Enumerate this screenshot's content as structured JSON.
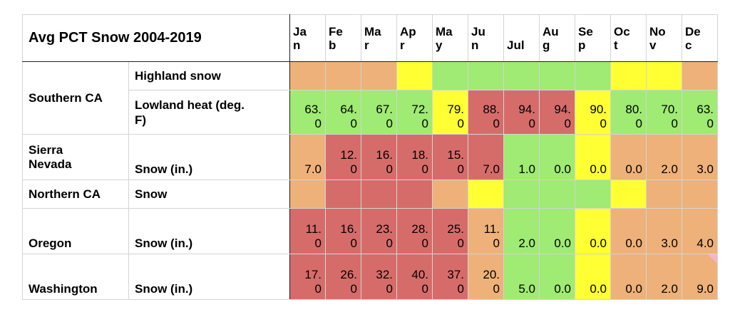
{
  "table": {
    "title": "Avg PCT Snow 2004-2019",
    "months": [
      {
        "line1": "Ja",
        "line2": "n"
      },
      {
        "line1": "Fe",
        "line2": "b"
      },
      {
        "line1": "Ma",
        "line2": "r"
      },
      {
        "line1": "Ap",
        "line2": "r"
      },
      {
        "line1": "Ma",
        "line2": "y"
      },
      {
        "line1": "Ju",
        "line2": "n"
      },
      {
        "line1": "Jul",
        "line2": ""
      },
      {
        "line1": "Au",
        "line2": "g"
      },
      {
        "line1": "Se",
        "line2": "p"
      },
      {
        "line1": "Oc",
        "line2": "t"
      },
      {
        "line1": "No",
        "line2": "v"
      },
      {
        "line1": "De",
        "line2": "c"
      }
    ],
    "regions": [
      {
        "name": "Southern CA"
      },
      {
        "name": "Sierra Nevada",
        "name_line1": "Sierra",
        "name_line2": "Nevada"
      },
      {
        "name": "Northern CA"
      },
      {
        "name": "Oregon"
      },
      {
        "name": "Washington"
      }
    ],
    "rows": [
      {
        "region": "Southern CA",
        "metric": "Highland snow",
        "cells": [
          {
            "v1": "",
            "v2": "",
            "color": "#eeb179"
          },
          {
            "v1": "",
            "v2": "",
            "color": "#eeb179"
          },
          {
            "v1": "",
            "v2": "",
            "color": "#eeb179"
          },
          {
            "v1": "",
            "v2": "",
            "color": "#ffff33"
          },
          {
            "v1": "",
            "v2": "",
            "color": "#9feb73"
          },
          {
            "v1": "",
            "v2": "",
            "color": "#9feb73"
          },
          {
            "v1": "",
            "v2": "",
            "color": "#9feb73"
          },
          {
            "v1": "",
            "v2": "",
            "color": "#9feb73"
          },
          {
            "v1": "",
            "v2": "",
            "color": "#9feb73"
          },
          {
            "v1": "",
            "v2": "",
            "color": "#ffff33"
          },
          {
            "v1": "",
            "v2": "",
            "color": "#ffff33"
          },
          {
            "v1": "",
            "v2": "",
            "color": "#eeb179"
          }
        ]
      },
      {
        "region": "Southern CA",
        "metric": "Lowland heat (deg. F)",
        "metric_line1": "Lowland heat (deg.",
        "metric_line2": "F)",
        "cells": [
          {
            "v1": "63.",
            "v2": "0",
            "color": "#9feb73"
          },
          {
            "v1": "64.",
            "v2": "0",
            "color": "#9feb73"
          },
          {
            "v1": "67.",
            "v2": "0",
            "color": "#9feb73"
          },
          {
            "v1": "72.",
            "v2": "0",
            "color": "#9feb73"
          },
          {
            "v1": "79.",
            "v2": "0",
            "color": "#ffff33"
          },
          {
            "v1": "88.",
            "v2": "0",
            "color": "#d66c6a"
          },
          {
            "v1": "94.",
            "v2": "0",
            "color": "#d66c6a"
          },
          {
            "v1": "94.",
            "v2": "0",
            "color": "#d66c6a"
          },
          {
            "v1": "90.",
            "v2": "0",
            "color": "#ffff33"
          },
          {
            "v1": "80.",
            "v2": "0",
            "color": "#9feb73"
          },
          {
            "v1": "70.",
            "v2": "0",
            "color": "#9feb73"
          },
          {
            "v1": "63.",
            "v2": "0",
            "color": "#9feb73"
          }
        ]
      },
      {
        "region": "Sierra Nevada",
        "metric": "Snow (in.)",
        "cells": [
          {
            "v1": "",
            "v2": "7.0",
            "color": "#eeb179"
          },
          {
            "v1": "12.",
            "v2": "0",
            "color": "#d66c6a"
          },
          {
            "v1": "16.",
            "v2": "0",
            "color": "#d66c6a"
          },
          {
            "v1": "18.",
            "v2": "0",
            "color": "#d66c6a"
          },
          {
            "v1": "15.",
            "v2": "0",
            "color": "#d66c6a"
          },
          {
            "v1": "",
            "v2": "7.0",
            "color": "#d66c6a"
          },
          {
            "v1": "",
            "v2": "1.0",
            "color": "#9feb73"
          },
          {
            "v1": "",
            "v2": "0.0",
            "color": "#9feb73"
          },
          {
            "v1": "",
            "v2": "0.0",
            "color": "#ffff33"
          },
          {
            "v1": "",
            "v2": "0.0",
            "color": "#eeb179"
          },
          {
            "v1": "",
            "v2": "2.0",
            "color": "#eeb179"
          },
          {
            "v1": "",
            "v2": "3.0",
            "color": "#eeb179"
          }
        ]
      },
      {
        "region": "Northern CA",
        "metric": "Snow",
        "cells": [
          {
            "v1": "",
            "v2": "",
            "color": "#eeb179"
          },
          {
            "v1": "",
            "v2": "",
            "color": "#d66c6a"
          },
          {
            "v1": "",
            "v2": "",
            "color": "#d66c6a"
          },
          {
            "v1": "",
            "v2": "",
            "color": "#d66c6a"
          },
          {
            "v1": "",
            "v2": "",
            "color": "#eeb179"
          },
          {
            "v1": "",
            "v2": "",
            "color": "#ffff33"
          },
          {
            "v1": "",
            "v2": "",
            "color": "#9feb73"
          },
          {
            "v1": "",
            "v2": "",
            "color": "#9feb73"
          },
          {
            "v1": "",
            "v2": "",
            "color": "#9feb73"
          },
          {
            "v1": "",
            "v2": "",
            "color": "#ffff33"
          },
          {
            "v1": "",
            "v2": "",
            "color": "#eeb179"
          },
          {
            "v1": "",
            "v2": "",
            "color": "#eeb179"
          }
        ]
      },
      {
        "region": "Oregon",
        "metric": "Snow (in.)",
        "cells": [
          {
            "v1": "11.",
            "v2": "0",
            "color": "#d66c6a"
          },
          {
            "v1": "16.",
            "v2": "0",
            "color": "#d66c6a"
          },
          {
            "v1": "23.",
            "v2": "0",
            "color": "#d66c6a"
          },
          {
            "v1": "28.",
            "v2": "0",
            "color": "#d66c6a"
          },
          {
            "v1": "25.",
            "v2": "0",
            "color": "#d66c6a"
          },
          {
            "v1": "11.",
            "v2": "0",
            "color": "#eeb179"
          },
          {
            "v1": "",
            "v2": "2.0",
            "color": "#9feb73"
          },
          {
            "v1": "",
            "v2": "0.0",
            "color": "#9feb73"
          },
          {
            "v1": "",
            "v2": "0.0",
            "color": "#ffff33"
          },
          {
            "v1": "",
            "v2": "0.0",
            "color": "#eeb179"
          },
          {
            "v1": "",
            "v2": "3.0",
            "color": "#eeb179"
          },
          {
            "v1": "",
            "v2": "4.0",
            "color": "#eeb179"
          }
        ]
      },
      {
        "region": "Washington",
        "metric": "Snow (in.)",
        "cells": [
          {
            "v1": "17.",
            "v2": "0",
            "color": "#d66c6a"
          },
          {
            "v1": "26.",
            "v2": "0",
            "color": "#d66c6a"
          },
          {
            "v1": "32.",
            "v2": "0",
            "color": "#d66c6a"
          },
          {
            "v1": "40.",
            "v2": "0",
            "color": "#d66c6a"
          },
          {
            "v1": "37.",
            "v2": "0",
            "color": "#d66c6a"
          },
          {
            "v1": "20.",
            "v2": "0",
            "color": "#eeb179"
          },
          {
            "v1": "",
            "v2": "5.0",
            "color": "#9feb73"
          },
          {
            "v1": "",
            "v2": "0.0",
            "color": "#9feb73"
          },
          {
            "v1": "",
            "v2": "0.0",
            "color": "#ffff33"
          },
          {
            "v1": "",
            "v2": "0.0",
            "color": "#eeb179"
          },
          {
            "v1": "",
            "v2": "2.0",
            "color": "#eeb179"
          },
          {
            "v1": "",
            "v2": "9.0",
            "color": "#eeb179",
            "comment_marker": true
          }
        ]
      }
    ],
    "colors": {
      "red": "#d66c6a",
      "orange": "#eeb179",
      "yellow": "#ffff33",
      "green": "#9feb73",
      "comment_marker": "#f4b6c9"
    }
  }
}
